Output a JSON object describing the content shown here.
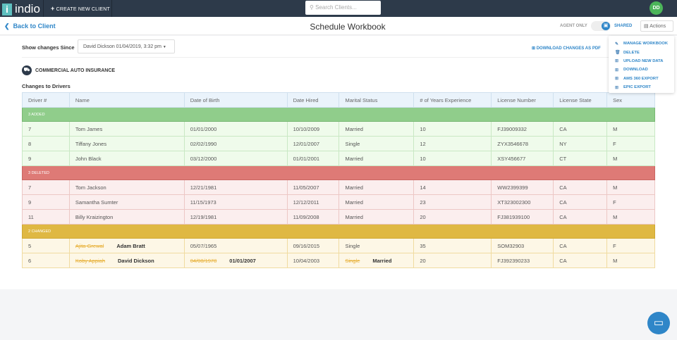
{
  "topbar": {
    "logo": "indio",
    "logo_mark": "i",
    "create": "CREATE NEW CLIENT",
    "search_placeholder": "Search Clients...",
    "avatar": "DD"
  },
  "header": {
    "back": "Back to Client",
    "title": "Schedule Workbook",
    "agent_only": "AGENT ONLY",
    "shared": "SHARED",
    "actions": "Actions"
  },
  "filters": {
    "label": "Show changes Since",
    "selected": "David Dickson 01/04/2019, 3:32 pm",
    "download": "DOWNLOAD CHANGES AS PDF"
  },
  "section": {
    "insurance": "COMMERCIAL AUTO INSURANCE",
    "subtitle": "Changes to Drivers"
  },
  "menu": [
    "MANAGE WORKBOOK",
    "DELETE",
    "UPLOAD NEW DATA",
    "DOWNLOAD",
    "AMS 360 EXPORT",
    "EPIC EXPORT"
  ],
  "table": {
    "columns": [
      "Driver #",
      "Name",
      "Date of Birth",
      "Date Hired",
      "Marital Status",
      "# of Years Experience",
      "License Number",
      "License State",
      "Sex"
    ],
    "added_label": "3 ADDED",
    "added": [
      [
        "7",
        "Tom James",
        "01/01/2000",
        "10/10/2009",
        "Married",
        "10",
        "FJ39009332",
        "CA",
        "M"
      ],
      [
        "8",
        "Tiffany Jones",
        "02/02/1990",
        "12/01/2007",
        "Single",
        "12",
        "ZYX3546678",
        "NY",
        "F"
      ],
      [
        "9",
        "John Black",
        "03/12/2000",
        "01/01/2001",
        "Married",
        "10",
        "XSY456677",
        "CT",
        "M"
      ]
    ],
    "deleted_label": "3 DELETED",
    "deleted": [
      [
        "7",
        "Tom Jackson",
        "12/21/1981",
        "11/05/2007",
        "Married",
        "14",
        "WW2399399",
        "CA",
        "M"
      ],
      [
        "9",
        "Samantha Sumter",
        "11/15/1973",
        "12/12/2011",
        "Married",
        "23",
        "XT323002300",
        "CA",
        "F"
      ],
      [
        "11",
        "Billy Kraizington",
        "12/19/1981",
        "11/09/2008",
        "Married",
        "20",
        "FJ381939100",
        "CA",
        "M"
      ]
    ],
    "changed_label": "2 CHANGED",
    "changed": [
      {
        "driver": "5",
        "name_old": "Ajita Grewal",
        "name_new": "Adam Bratt",
        "dob": "05/07/1965",
        "hired": "09/16/2015",
        "marital": "Single",
        "years": "35",
        "license": "SOM32903",
        "state": "CA",
        "sex": "F"
      },
      {
        "driver": "6",
        "name_old": "Koby Appiah",
        "name_new": "David Dickson",
        "dob_old": "04/08/1978",
        "dob_new": "01/01/2007",
        "hired": "10/04/2003",
        "marital_old": "Single",
        "marital_new": "Married",
        "years": "20",
        "license": "FJ392390233",
        "state": "CA",
        "sex": "M"
      }
    ]
  }
}
